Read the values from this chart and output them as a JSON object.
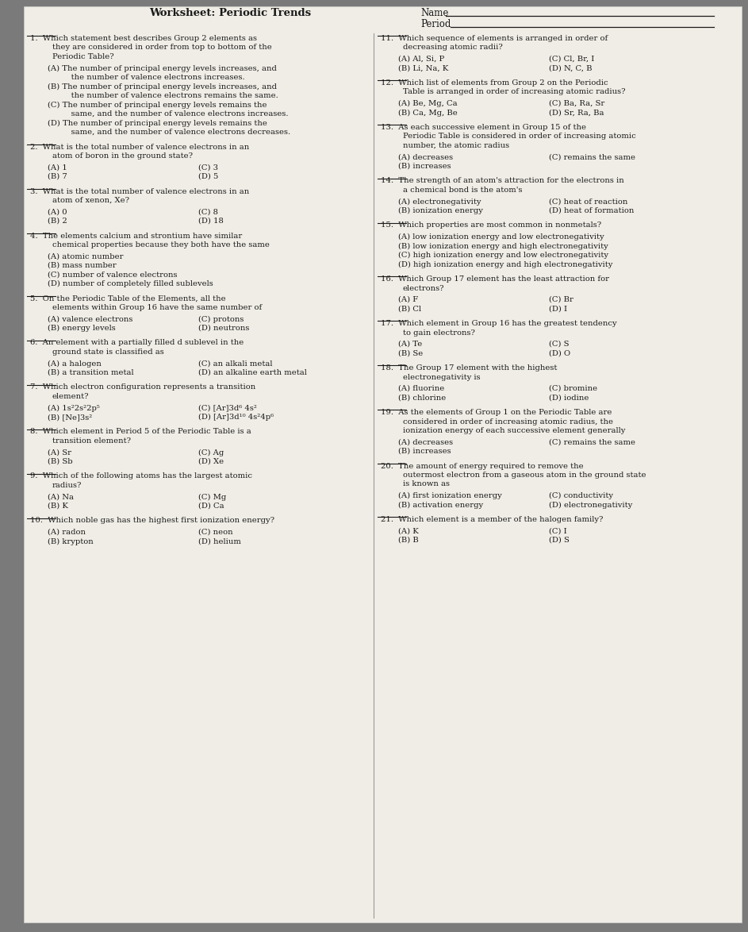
{
  "bg_color": "#7a7a7a",
  "paper_color": "#f0ede6",
  "text_color": "#1a1a1a",
  "header_title": "Worksheet: Periodic Trends",
  "left_questions": [
    {
      "num": "1",
      "stem": "Which statement best describes Group 2 elements as\nthey are considered in order from top to bottom of the\nPeriodic Table?",
      "choices": [
        "(A) The number of principal energy levels increases, and\n     the number of valence electrons increases.",
        "(B) The number of principal energy levels increases, and\n     the number of valence electrons remains the same.",
        "(C) The number of principal energy levels remains the\n     same, and the number of valence electrons increases.",
        "(D) The number of principal energy levels remains the\n     same, and the number of valence electrons decreases."
      ],
      "two_col": false
    },
    {
      "num": "2",
      "stem": "What is the total number of valence electrons in an\natom of boron in the ground state?",
      "choices": [
        "(A) 1",
        "(B) 7",
        "(C) 3",
        "(D) 5"
      ],
      "two_col": true
    },
    {
      "num": "3",
      "stem": "What is the total number of valence electrons in an\natom of xenon, Xe?",
      "choices": [
        "(A) 0",
        "(B) 2",
        "(C) 8",
        "(D) 18"
      ],
      "two_col": true
    },
    {
      "num": "4",
      "stem": "The elements calcium and strontium have similar\nchemical properties because they both have the same",
      "choices": [
        "(A) atomic number",
        "(B) mass number",
        "(C) number of valence electrons",
        "(D) number of completely filled sublevels"
      ],
      "two_col": false
    },
    {
      "num": "5",
      "stem": "On the Periodic Table of the Elements, all the\nelements within Group 16 have the same number of",
      "choices": [
        "(A) valence electrons",
        "(B) energy levels",
        "(C) protons",
        "(D) neutrons"
      ],
      "two_col": true
    },
    {
      "num": "6",
      "stem": "An element with a partially filled d sublevel in the\nground state is classified as",
      "choices": [
        "(A) a halogen",
        "(B) a transition metal",
        "(C) an alkali metal",
        "(D) an alkaline earth metal"
      ],
      "two_col": true
    },
    {
      "num": "7",
      "stem": "Which electron configuration represents a transition\nelement?",
      "choices": [
        "(A) 1s²2s²2p⁵",
        "(B) [Ne]3s²",
        "(C) [Ar]3d⁶ 4s²",
        "(D) [Ar]3d¹⁰ 4s²4p⁶"
      ],
      "two_col": true
    },
    {
      "num": "8",
      "stem": "Which element in Period 5 of the Periodic Table is a\ntransition element?",
      "choices": [
        "(A) Sr",
        "(B) Sb",
        "(C) Ag",
        "(D) Xe"
      ],
      "two_col": true
    },
    {
      "num": "9",
      "stem": "Which of the following atoms has the largest atomic\nradius?",
      "choices": [
        "(A) Na",
        "(B) K",
        "(C) Mg",
        "(D) Ca"
      ],
      "two_col": true
    },
    {
      "num": "10",
      "stem": "Which noble gas has the highest first ionization energy?",
      "choices": [
        "(A) radon",
        "(B) krypton",
        "(C) neon",
        "(D) helium"
      ],
      "two_col": true
    }
  ],
  "right_questions": [
    {
      "num": "11",
      "stem": "Which sequence of elements is arranged in order of\ndecreasing atomic radii?",
      "choices": [
        "(A) Al, Si, P",
        "(B) Li, Na, K",
        "(C) Cl, Br, I",
        "(D) N, C, B"
      ],
      "two_col": true
    },
    {
      "num": "12",
      "stem": "Which list of elements from Group 2 on the Periodic\nTable is arranged in order of increasing atomic radius?",
      "choices": [
        "(A) Be, Mg, Ca",
        "(B) Ca, Mg, Be",
        "(C) Ba, Ra, Sr",
        "(D) Sr, Ra, Ba"
      ],
      "two_col": true
    },
    {
      "num": "13",
      "stem": "As each successive element in Group 15 of the\nPeriodic Table is considered in order of increasing atomic\nnumber, the atomic radius",
      "choices": [
        "(A) decreases",
        "(B) increases",
        "(C) remains the same"
      ],
      "two_col": true,
      "three_choice": true
    },
    {
      "num": "14",
      "stem": "The strength of an atom's attraction for the electrons in\na chemical bond is the atom's",
      "choices": [
        "(A) electronegativity",
        "(B) ionization energy",
        "(C) heat of reaction",
        "(D) heat of formation"
      ],
      "two_col": true
    },
    {
      "num": "15",
      "stem": "Which properties are most common in nonmetals?",
      "choices": [
        "(A) low ionization energy and low electronegativity",
        "(B) low ionization energy and high electronegativity",
        "(C) high ionization energy and low electronegativity",
        "(D) high ionization energy and high electronegativity"
      ],
      "two_col": false
    },
    {
      "num": "16",
      "stem": "Which Group 17 element has the least attraction for\nelectrons?",
      "choices": [
        "(A) F",
        "(B) Cl",
        "(C) Br",
        "(D) I"
      ],
      "two_col": true
    },
    {
      "num": "17",
      "stem": "Which element in Group 16 has the greatest tendency\nto gain electrons?",
      "choices": [
        "(A) Te",
        "(B) Se",
        "(C) S",
        "(D) O"
      ],
      "two_col": true
    },
    {
      "num": "18",
      "stem": "The Group 17 element with the highest\nelectronegativity is",
      "choices": [
        "(A) fluorine",
        "(B) chlorine",
        "(C) bromine",
        "(D) iodine"
      ],
      "two_col": true
    },
    {
      "num": "19",
      "stem": "As the elements of Group 1 on the Periodic Table are\nconsidered in order of increasing atomic radius, the\nionization energy of each successive element generally",
      "choices": [
        "(A) decreases",
        "(B) increases",
        "(C) remains the same"
      ],
      "two_col": true,
      "three_choice": true
    },
    {
      "num": "20",
      "stem": "The amount of energy required to remove the\noutermost electron from a gaseous atom in the ground state\nis known as",
      "choices": [
        "(A) first ionization energy",
        "(B) activation energy",
        "(C) conductivity",
        "(D) electronegativity"
      ],
      "two_col": true
    },
    {
      "num": "21",
      "stem": "Which element is a member of the halogen family?",
      "choices": [
        "(A) K",
        "(B) B",
        "(C) I",
        "(D) S"
      ],
      "two_col": true
    }
  ]
}
